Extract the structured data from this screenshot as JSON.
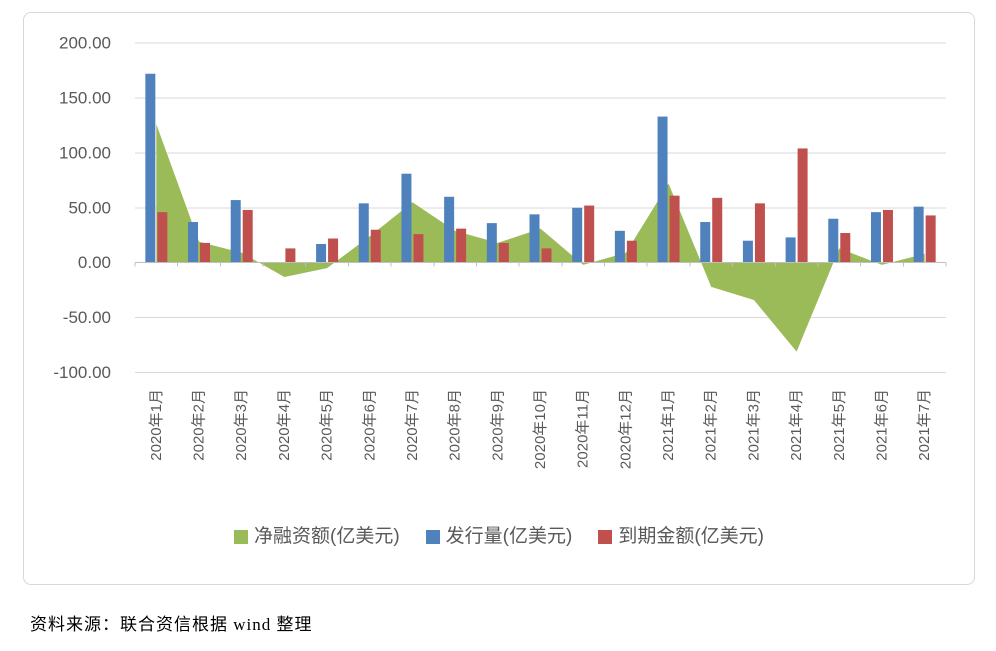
{
  "chart_data": {
    "type": "combo",
    "title": "",
    "categories": [
      "2020年1月",
      "2020年2月",
      "2020年3月",
      "2020年4月",
      "2020年5月",
      "2020年6月",
      "2020年7月",
      "2020年8月",
      "2020年9月",
      "2020年10月",
      "2020年11月",
      "2020年12月",
      "2021年1月",
      "2021年2月",
      "2021年3月",
      "2021年4月",
      "2021年5月",
      "2021年6月",
      "2021年7月"
    ],
    "series": [
      {
        "name": "净融资额(亿美元)",
        "chart_type": "area",
        "color": "#9bbb59",
        "values": [
          126,
          19,
          9,
          -13,
          -5,
          24,
          55,
          29,
          18,
          31,
          -2,
          9,
          72,
          -22,
          -34,
          -81,
          13,
          -2,
          8
        ]
      },
      {
        "name": "发行量(亿美元)",
        "chart_type": "bar",
        "color": "#4f81bd",
        "values": [
          172,
          37,
          57,
          0,
          17,
          54,
          81,
          60,
          36,
          44,
          50,
          29,
          133,
          37,
          20,
          23,
          40,
          46,
          51
        ]
      },
      {
        "name": "到期金额(亿美元)",
        "chart_type": "bar",
        "color": "#c0504d",
        "values": [
          46,
          18,
          48,
          13,
          22,
          30,
          26,
          31,
          18,
          13,
          52,
          20,
          61,
          59,
          54,
          104,
          27,
          48,
          43
        ]
      }
    ],
    "y_axis": {
      "min": -100,
      "max": 200,
      "step": 50,
      "decimals": 2,
      "tick_labels": [
        "200.00",
        "150.00",
        "100.00",
        "50.00",
        "0.00",
        "-50.00",
        "-100.00"
      ]
    },
    "grid": true,
    "legend_position": "bottom",
    "styles": {
      "gridline_color": "#d9d9d9",
      "axis_color": "#bfbfbf",
      "tick_text_color": "#595959"
    }
  },
  "source_note": "资料来源：联合资信根据 wind 整理"
}
